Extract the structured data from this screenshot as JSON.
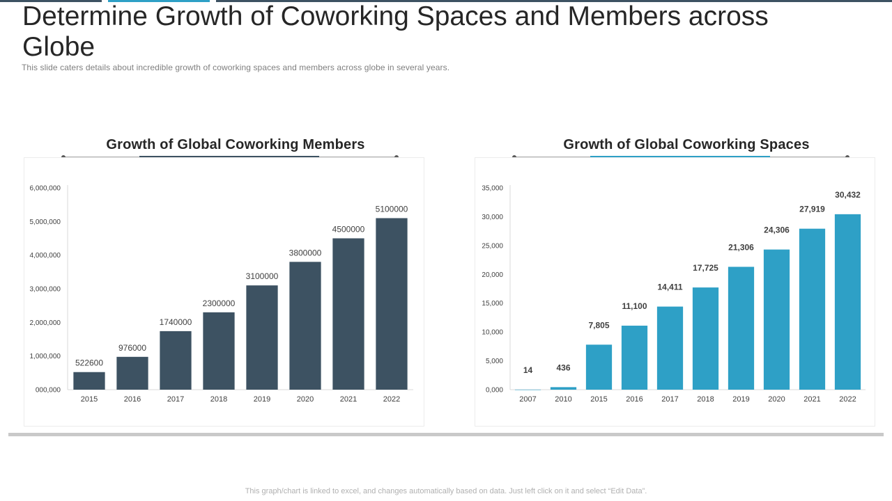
{
  "slide": {
    "title": "Determine Growth of Coworking Spaces and Members across Globe",
    "subtitle": "This slide caters details about incredible growth of coworking spaces and members across globe in several years.",
    "footer": "This graph/chart is linked to excel, and changes automatically based on data. Just left click on it and select “Edit Data”."
  },
  "colors": {
    "members_bar": "#3d5262",
    "spaces_bar": "#2ea0c6",
    "axis_text": "#404040",
    "label_text": "#404040"
  },
  "chart_data": [
    {
      "type": "bar",
      "title": "Growth  of Global Coworking  Members",
      "xlabel": "",
      "ylabel": "",
      "categories": [
        "2015",
        "2016",
        "2017",
        "2018",
        "2019",
        "2020",
        "2021",
        "2022"
      ],
      "values": [
        522600,
        976000,
        1740000,
        2300000,
        3100000,
        3800000,
        4500000,
        5100000
      ],
      "value_labels": [
        "522600",
        "976000",
        "1740000",
        "2300000",
        "3100000",
        "3800000",
        "4500000",
        "5100000"
      ],
      "ylim": [
        0,
        6000000
      ],
      "yticks": [
        0,
        1000000,
        2000000,
        3000000,
        4000000,
        5000000,
        6000000
      ],
      "ytick_labels": [
        "000,000",
        "1,000,000",
        "2,000,000",
        "3,000,000",
        "4,000,000",
        "5,000,000",
        "6,000,000"
      ],
      "grid": false,
      "label_bold": false
    },
    {
      "type": "bar",
      "title": "Growth  of Global Coworking  Spaces",
      "xlabel": "",
      "ylabel": "",
      "categories": [
        "2007",
        "2010",
        "2015",
        "2016",
        "2017",
        "2018",
        "2019",
        "2020",
        "2021",
        "2022"
      ],
      "values": [
        14,
        436,
        7805,
        11100,
        14411,
        17725,
        21306,
        24306,
        27919,
        30432
      ],
      "value_labels": [
        "14",
        "436",
        "7,805",
        "11,100",
        "14,411",
        "17,725",
        "21,306",
        "24,306",
        "27,919",
        "30,432"
      ],
      "ylim": [
        0,
        35000
      ],
      "yticks": [
        0,
        5000,
        10000,
        15000,
        20000,
        25000,
        30000,
        35000
      ],
      "ytick_labels": [
        "0,000",
        "5,000",
        "10,000",
        "15,000",
        "20,000",
        "25,000",
        "30,000",
        "35,000"
      ],
      "grid": false,
      "label_bold": true
    }
  ]
}
